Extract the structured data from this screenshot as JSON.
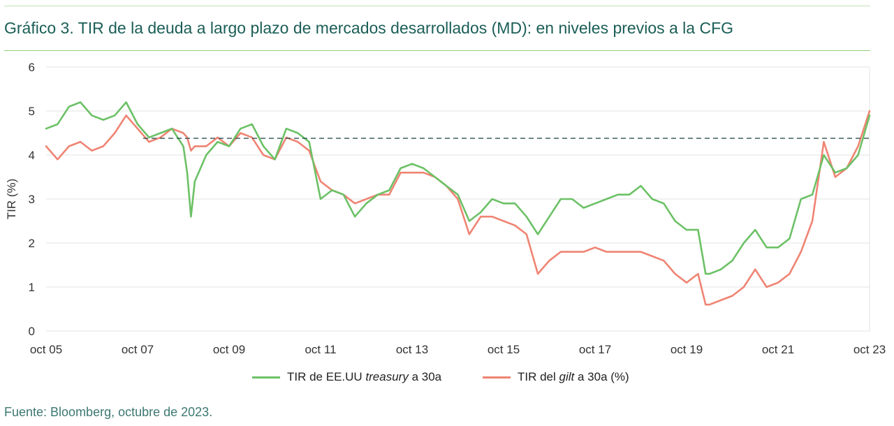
{
  "header": {
    "title": "Gráfico 3. TIR de la deuda a largo plazo de mercados desarrollados (MD): en niveles previos a la CFG"
  },
  "footer": {
    "source": "Fuente: Bloomberg, octubre de 2023."
  },
  "legend": {
    "us_pre": "TIR de EE.UU ",
    "us_em": "treasury",
    "us_post": " a 30a",
    "uk_pre": "TIR del ",
    "uk_em": "gilt",
    "uk_post": " a 30a (%)"
  },
  "colors": {
    "us": "#6cc166",
    "uk": "#ef8473",
    "reference": "#2f4f4f",
    "grid": "#e3e3e3",
    "title": "#1b5e57"
  },
  "chart_data": {
    "type": "line",
    "ylabel": "TIR (%)",
    "xlabel": "",
    "ylim": [
      0,
      6
    ],
    "yticks": [
      "0",
      "1",
      "2",
      "3",
      "4",
      "5",
      "6"
    ],
    "xlim": [
      "2005-10",
      "2023-10"
    ],
    "xticks": [
      "oct 05",
      "oct 07",
      "oct 09",
      "oct 11",
      "oct 13",
      "oct 15",
      "oct 17",
      "oct 19",
      "oct 21",
      "oct 23"
    ],
    "reference_line": 4.38,
    "grid": true,
    "legend_position": "bottom-center",
    "x": [
      "2005-10",
      "2006-01",
      "2006-04",
      "2006-07",
      "2006-10",
      "2007-01",
      "2007-04",
      "2007-07",
      "2007-10",
      "2008-01",
      "2008-04",
      "2008-07",
      "2008-10",
      "2008-11",
      "2008-12",
      "2009-01",
      "2009-04",
      "2009-07",
      "2009-10",
      "2010-01",
      "2010-04",
      "2010-07",
      "2010-10",
      "2011-01",
      "2011-04",
      "2011-07",
      "2011-10",
      "2012-01",
      "2012-04",
      "2012-07",
      "2012-10",
      "2013-01",
      "2013-04",
      "2013-07",
      "2013-10",
      "2014-01",
      "2014-04",
      "2014-07",
      "2014-10",
      "2015-01",
      "2015-04",
      "2015-07",
      "2015-10",
      "2016-01",
      "2016-04",
      "2016-07",
      "2016-10",
      "2017-01",
      "2017-04",
      "2017-07",
      "2017-10",
      "2018-01",
      "2018-04",
      "2018-07",
      "2018-10",
      "2019-01",
      "2019-04",
      "2019-07",
      "2019-10",
      "2020-01",
      "2020-03",
      "2020-04",
      "2020-07",
      "2020-10",
      "2021-01",
      "2021-04",
      "2021-07",
      "2021-10",
      "2022-01",
      "2022-04",
      "2022-07",
      "2022-10",
      "2023-01",
      "2023-04",
      "2023-07",
      "2023-10"
    ],
    "series": [
      {
        "name": "TIR de EE.UU treasury a 30a",
        "color": "#6cc166",
        "values": [
          4.6,
          4.7,
          5.1,
          5.2,
          4.9,
          4.8,
          4.9,
          5.2,
          4.7,
          4.4,
          4.5,
          4.6,
          4.2,
          3.6,
          2.6,
          3.4,
          4.0,
          4.3,
          4.2,
          4.6,
          4.7,
          4.2,
          3.9,
          4.6,
          4.5,
          4.3,
          3.0,
          3.2,
          3.1,
          2.6,
          2.9,
          3.1,
          3.2,
          3.7,
          3.8,
          3.7,
          3.5,
          3.3,
          3.1,
          2.5,
          2.7,
          3.0,
          2.9,
          2.9,
          2.6,
          2.2,
          2.6,
          3.0,
          3.0,
          2.8,
          2.9,
          3.0,
          3.1,
          3.1,
          3.3,
          3.0,
          2.9,
          2.5,
          2.3,
          2.3,
          1.3,
          1.3,
          1.4,
          1.6,
          2.0,
          2.3,
          1.9,
          1.9,
          2.1,
          3.0,
          3.1,
          4.0,
          3.6,
          3.7,
          4.0,
          4.9
        ]
      },
      {
        "name": "TIR del gilt a 30a (%)",
        "color": "#ef8473",
        "values": [
          4.2,
          3.9,
          4.2,
          4.3,
          4.1,
          4.2,
          4.5,
          4.9,
          4.6,
          4.3,
          4.4,
          4.6,
          4.5,
          4.4,
          4.1,
          4.2,
          4.2,
          4.4,
          4.2,
          4.5,
          4.4,
          4.0,
          3.9,
          4.4,
          4.3,
          4.1,
          3.4,
          3.2,
          3.1,
          2.9,
          3.0,
          3.1,
          3.1,
          3.6,
          3.6,
          3.6,
          3.5,
          3.3,
          3.0,
          2.2,
          2.6,
          2.6,
          2.5,
          2.4,
          2.2,
          1.3,
          1.6,
          1.8,
          1.8,
          1.8,
          1.9,
          1.8,
          1.8,
          1.8,
          1.8,
          1.7,
          1.6,
          1.3,
          1.1,
          1.3,
          0.6,
          0.6,
          0.7,
          0.8,
          1.0,
          1.4,
          1.0,
          1.1,
          1.3,
          1.8,
          2.5,
          4.3,
          3.5,
          3.7,
          4.2,
          5.0
        ]
      }
    ]
  }
}
